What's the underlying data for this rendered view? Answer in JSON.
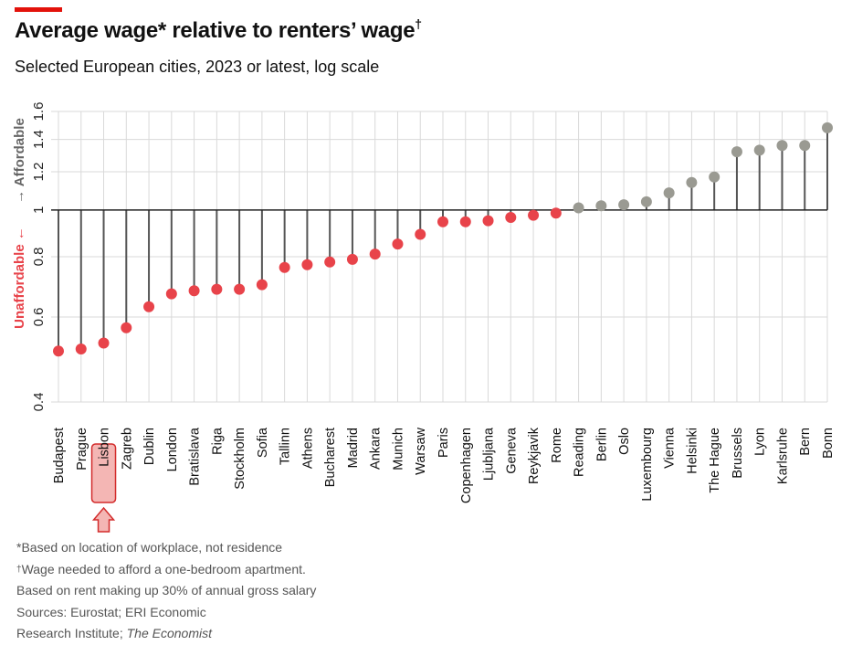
{
  "header": {
    "title": "Average wage* relative to renters’ wage",
    "title_mark": "†",
    "subtitle": "Selected European cities, 2023 or latest, log scale"
  },
  "footnotes": {
    "line1": "*Based on location of workplace, not residence",
    "line2_mark": "†",
    "line2": "Wage needed to afford a one-bedroom apartment.",
    "line3": "Based on rent making up 30% of annual gross salary",
    "line4": "Sources: Eurostat; ERI Economic",
    "line5_prefix": "Research Institute; ",
    "line5_italic": "The Economist"
  },
  "colors": {
    "unaffordable": "#e8434a",
    "affordable": "#9a9a92",
    "stem": "#555555",
    "grid": "#d9d9d9",
    "baseline": "#222222",
    "highlight_fill": "#f4b6b4",
    "highlight_stroke": "#d32b2b"
  },
  "chart_data": {
    "type": "lollipop",
    "scale": "log",
    "baseline": 1,
    "ylim": [
      0.4,
      1.6
    ],
    "yticks": [
      0.4,
      0.6,
      0.8,
      1,
      1.2,
      1.4,
      1.6
    ],
    "ytick_labels": [
      "0.4",
      "0.6",
      "0.8",
      "1",
      "1.2",
      "1.4",
      "1.6"
    ],
    "ylabel_down": "Unaffordable ←",
    "ylabel_up": "→ Affordable",
    "highlight": "Lisbon",
    "categories": [
      "Budapest",
      "Prague",
      "Lisbon",
      "Zagreb",
      "Dublin",
      "London",
      "Bratislava",
      "Riga",
      "Stockholm",
      "Sofia",
      "Tallinn",
      "Athens",
      "Bucharest",
      "Madrid",
      "Ankara",
      "Munich",
      "Warsaw",
      "Paris",
      "Copenhagen",
      "Ljubljana",
      "Geneva",
      "Reykjavik",
      "Rome",
      "Reading",
      "Berlin",
      "Oslo",
      "Luxembourg",
      "Vienna",
      "Helsinki",
      "The Hague",
      "Brussels",
      "Lyon",
      "Karlsruhe",
      "Bern",
      "Bonn"
    ],
    "values": [
      0.51,
      0.515,
      0.53,
      0.57,
      0.63,
      0.67,
      0.68,
      0.685,
      0.685,
      0.7,
      0.76,
      0.77,
      0.78,
      0.79,
      0.81,
      0.85,
      0.89,
      0.945,
      0.945,
      0.95,
      0.965,
      0.975,
      0.985,
      1.01,
      1.02,
      1.025,
      1.04,
      1.085,
      1.14,
      1.17,
      1.32,
      1.33,
      1.36,
      1.36,
      1.48
    ]
  }
}
